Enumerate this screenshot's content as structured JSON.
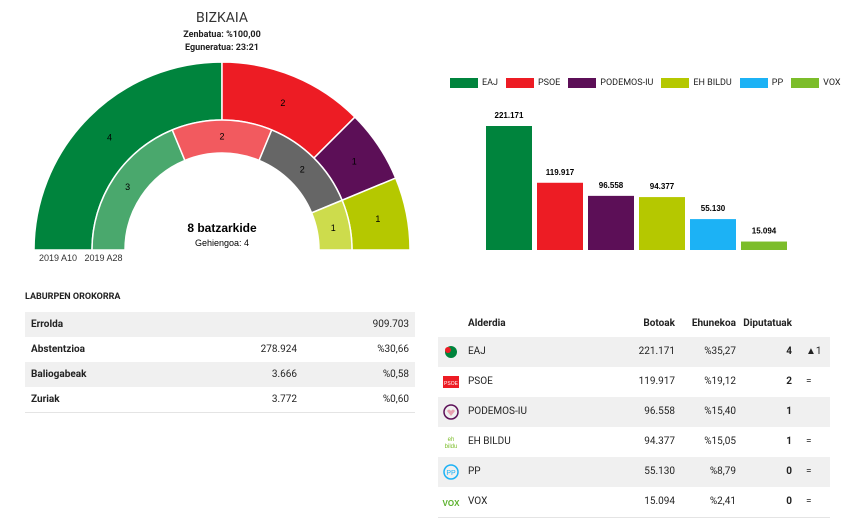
{
  "header": {
    "title": "BIZKAIA",
    "counted": "Zenbatua: %100,00",
    "updated": "Eguneratua: 23:21"
  },
  "chart_data": [
    {
      "type": "donut",
      "center_title": "8 batzarkide",
      "center_subtitle": "Gehiengoa: 4",
      "rings": [
        {
          "name": "2019 A10",
          "values": [
            4,
            2,
            1,
            1
          ],
          "colors": [
            "#00843d",
            "#ed1c24",
            "#5c0f57",
            "#b5c800"
          ]
        },
        {
          "name": "2019 A28",
          "values": [
            3,
            2,
            2,
            1
          ],
          "colors": [
            "#4aa86d",
            "#f25a5f",
            "#666666",
            "#cddc4c"
          ]
        }
      ]
    },
    {
      "type": "bar",
      "categories": [
        "EAJ",
        "PSOE",
        "PODEMOS-IU",
        "EH BILDU",
        "PP",
        "VOX"
      ],
      "values": [
        221171,
        119917,
        96558,
        94377,
        55130,
        15094
      ],
      "value_labels": [
        "221.171",
        "119.917",
        "96.558",
        "94.377",
        "55.130",
        "15.094"
      ],
      "colors": [
        "#00843d",
        "#ed1c24",
        "#5c0f57",
        "#b5c800",
        "#1cb2f5",
        "#7cbd2a"
      ],
      "legend": "top"
    }
  ],
  "summary": {
    "title": "LABURPEN OROKORRA",
    "rows": [
      {
        "label": "Errolda",
        "total": "909.703"
      },
      {
        "label": "Abstentzioa",
        "value": "278.924",
        "percent": "%30,66"
      },
      {
        "label": "Baliogabeak",
        "value": "3.666",
        "percent": "%0,58"
      },
      {
        "label": "Zuriak",
        "value": "3.772",
        "percent": "%0,60"
      }
    ]
  },
  "parties": {
    "headers": [
      "Alderdia",
      "Botoak",
      "Ehunekoa",
      "Diputatuak"
    ],
    "rows": [
      {
        "party": "EAJ",
        "votes": "221.171",
        "percent": "%35,27",
        "seats": "4",
        "change": "▲1"
      },
      {
        "party": "PSOE",
        "votes": "119.917",
        "percent": "%19,12",
        "seats": "2",
        "change": "="
      },
      {
        "party": "PODEMOS-IU",
        "votes": "96.558",
        "percent": "%15,40",
        "seats": "1"
      },
      {
        "party": "EH BILDU",
        "votes": "94.377",
        "percent": "%15,05",
        "seats": "1",
        "change": "="
      },
      {
        "party": "PP",
        "votes": "55.130",
        "percent": "%8,79",
        "seats": "0",
        "change": "="
      },
      {
        "party": "VOX",
        "votes": "15.094",
        "percent": "%2,41",
        "seats": "0",
        "change": "="
      }
    ]
  }
}
